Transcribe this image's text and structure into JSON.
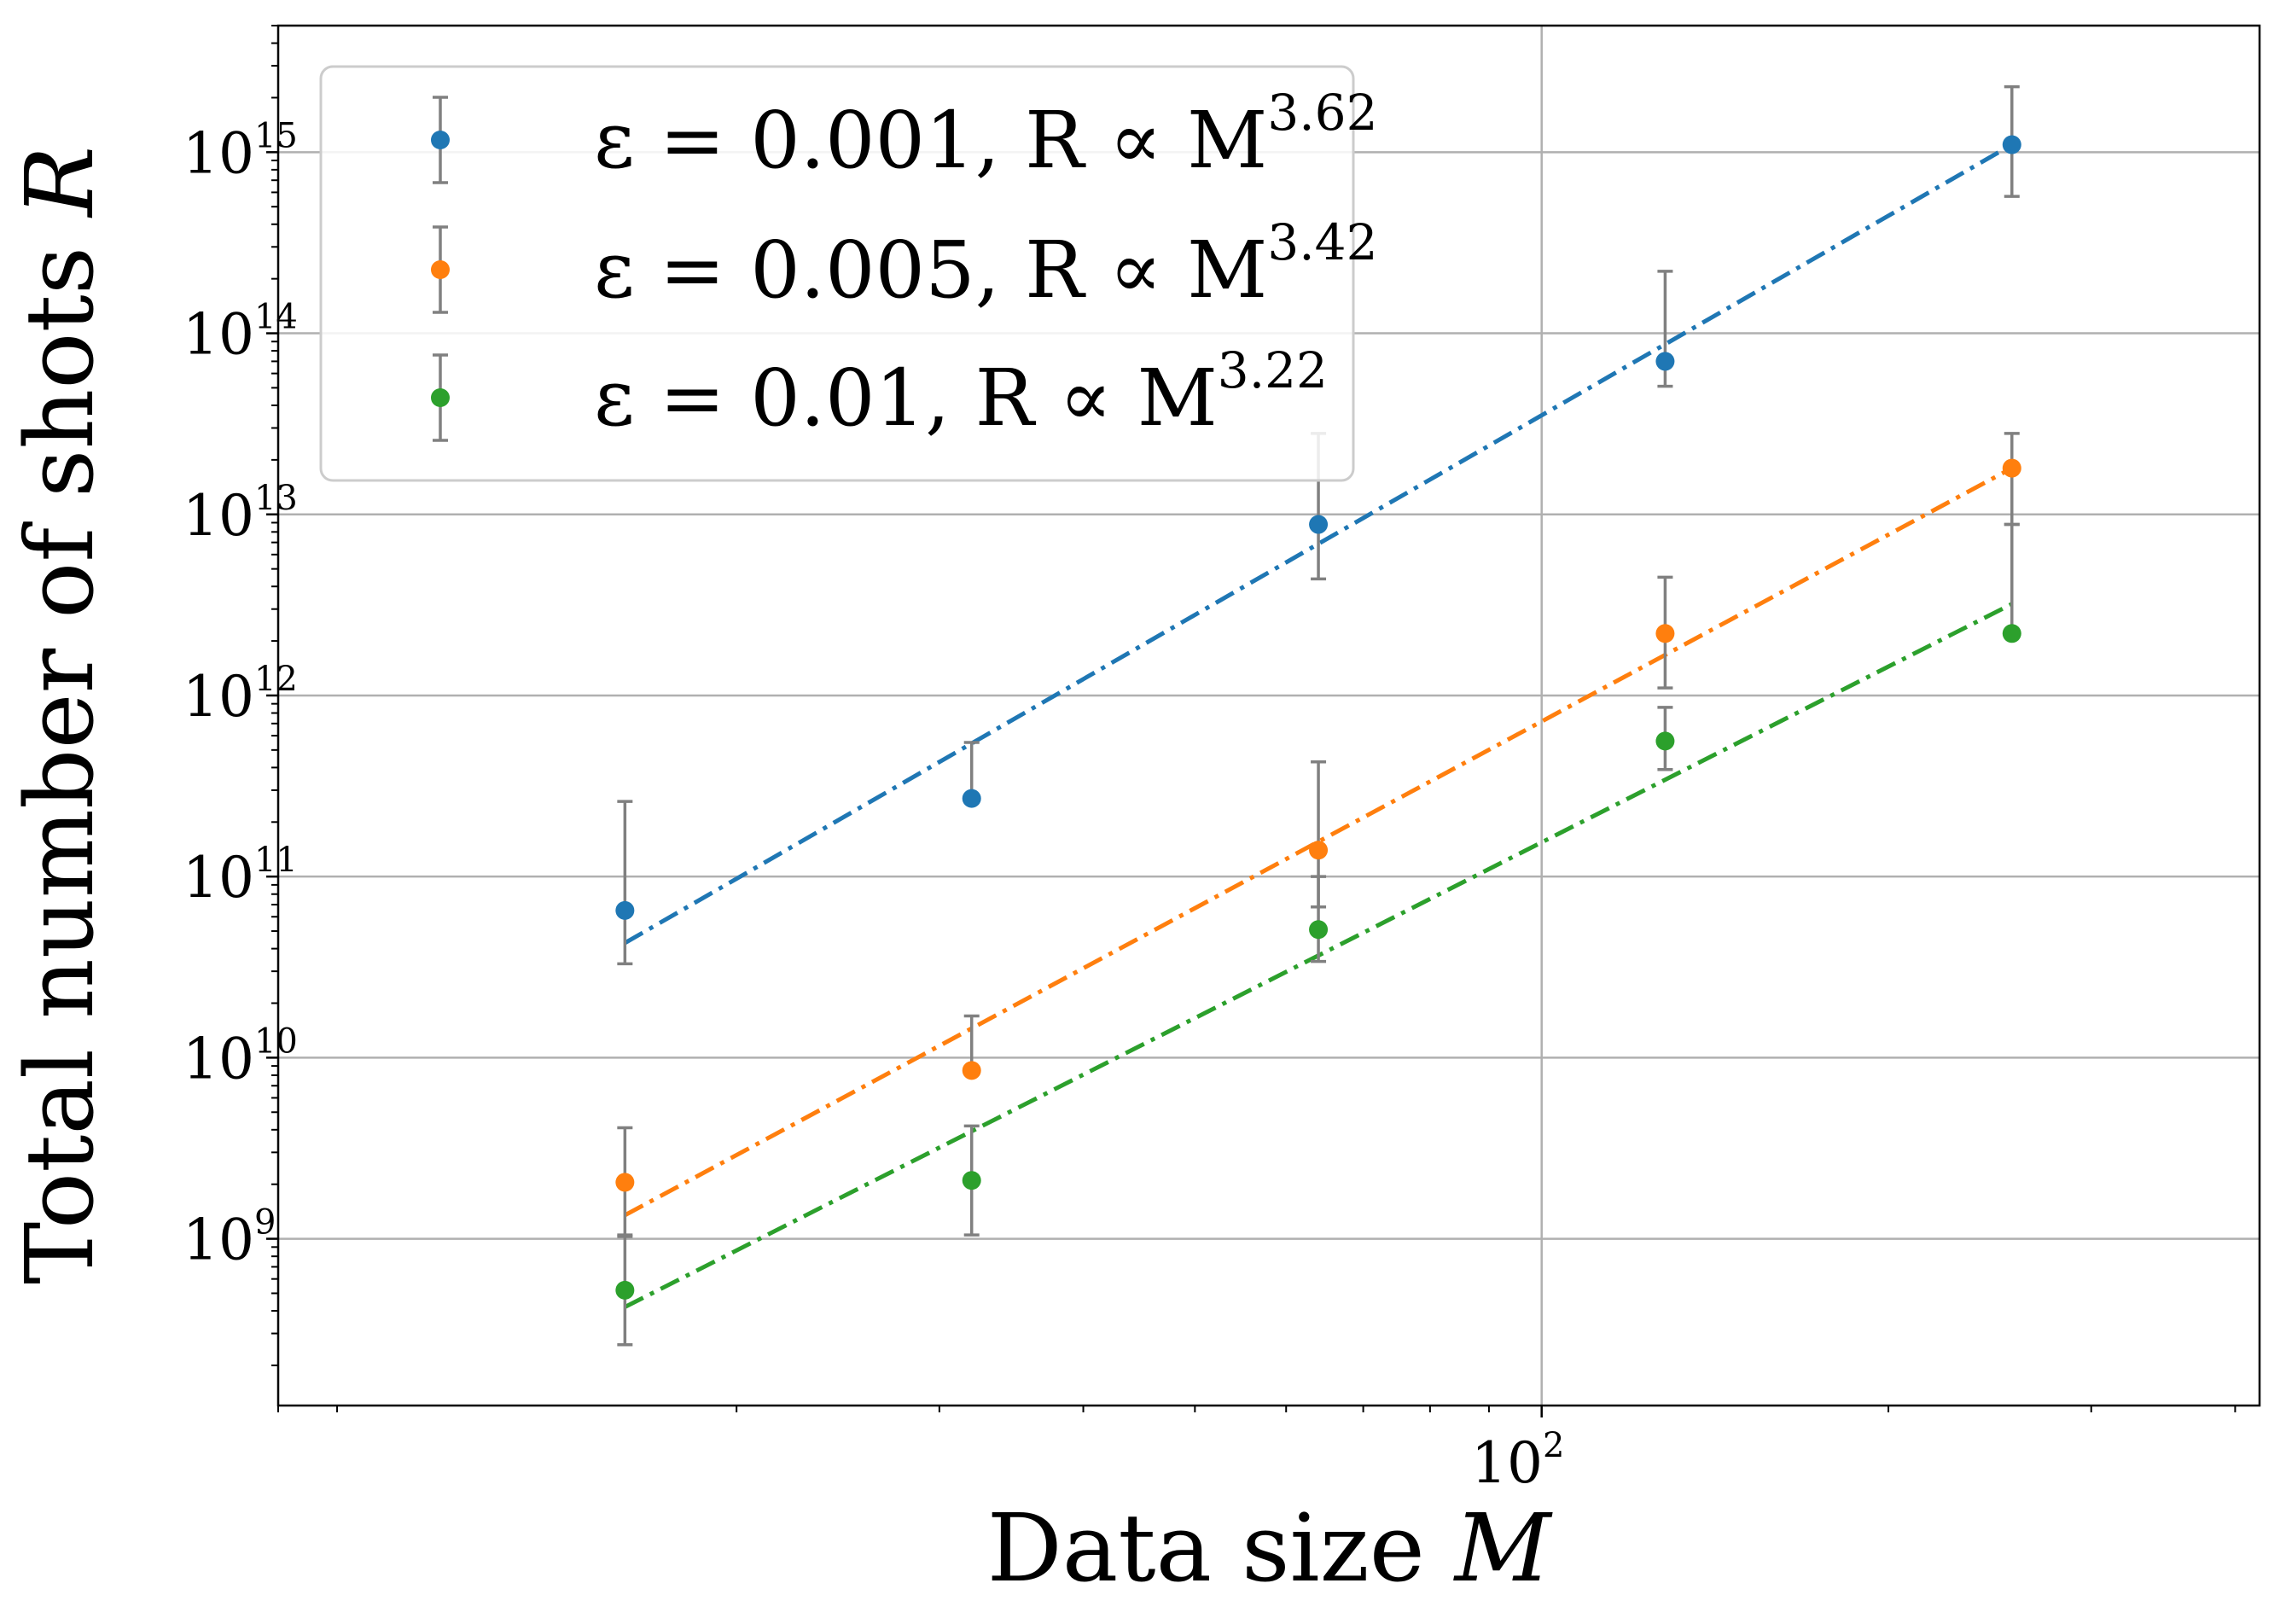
{
  "chart_data": {
    "type": "scatter",
    "xlabel": "Data size",
    "xlabel_var": "M",
    "ylabel": "Total number of shots",
    "ylabel_var": "R",
    "xscale": "log",
    "yscale": "log",
    "xlim": [
      8,
      420
    ],
    "ylim": [
      120000000.0,
      5000000000000000.0
    ],
    "grid": true,
    "legend_placement": "top-left",
    "x": [
      16,
      32,
      64,
      128,
      256
    ],
    "x_tick_labels": [
      {
        "base": "10",
        "exp": "2",
        "value": 100
      }
    ],
    "y_tick_labels": [
      {
        "base": "10",
        "exp": "9",
        "value": 1000000000.0
      },
      {
        "base": "10",
        "exp": "10",
        "value": 10000000000.0
      },
      {
        "base": "10",
        "exp": "11",
        "value": 100000000000.0
      },
      {
        "base": "10",
        "exp": "12",
        "value": 1000000000000.0
      },
      {
        "base": "10",
        "exp": "13",
        "value": 10000000000000.0
      },
      {
        "base": "10",
        "exp": "14",
        "value": 100000000000000.0
      },
      {
        "base": "10",
        "exp": "15",
        "value": 1000000000000000.0
      }
    ],
    "series": [
      {
        "legend_prefix": "ε = 0.001,   R ∝ M",
        "legend_exp": "3.62",
        "color": "#1f77b4",
        "values": [
          65000000000.0,
          270000000000.0,
          8800000000000.0,
          70000000000000.0,
          1100000000000000.0
        ],
        "err_low": [
          33000000000.0,
          270000000000.0,
          4400000000000.0,
          51000000000000.0,
          570000000000000.0
        ],
        "err_high": [
          260000000000.0,
          550000000000.0,
          28000000000000.0,
          220000000000000.0,
          2300000000000000.0
        ],
        "fit": [
          43000000000.0,
          1100000000000000.0
        ]
      },
      {
        "legend_prefix": "ε = 0.005,   R ∝ M",
        "legend_exp": "3.42",
        "color": "#ff7f0e",
        "values": [
          2050000000.0,
          8500000000.0,
          140000000000.0,
          2200000000000.0,
          18000000000000.0
        ],
        "err_low": [
          1050000000.0,
          8500000000.0,
          68000000000.0,
          1100000000000.0,
          8800000000000.0
        ],
        "err_high": [
          4100000000.0,
          17000000000.0,
          430000000000.0,
          4500000000000.0,
          28000000000000.0
        ],
        "fit": [
          1350000000.0,
          18000000000000.0
        ]
      },
      {
        "legend_prefix": "ε = 0.01,   R ∝ M",
        "legend_exp": "3.22",
        "color": "#2ca02c",
        "values": [
          520000000.0,
          2100000000.0,
          51000000000.0,
          560000000000.0,
          2200000000000.0
        ],
        "err_low": [
          260000000.0,
          1050000000.0,
          34000000000.0,
          390000000000.0,
          2200000000000.0
        ],
        "err_high": [
          1030000000.0,
          4200000000.0,
          100000000000.0,
          860000000000.0,
          8800000000000.0
        ],
        "fit": [
          420000000.0,
          3200000000000.0
        ]
      }
    ]
  }
}
